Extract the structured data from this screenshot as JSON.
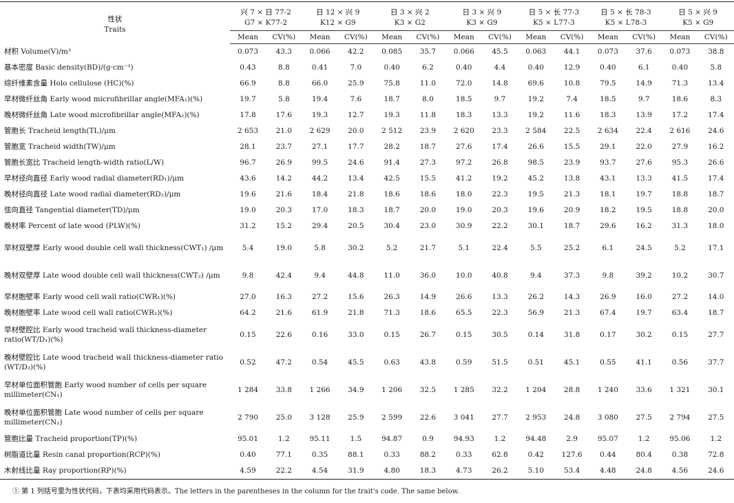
{
  "header": {
    "traits_cn": "性状",
    "traits_en": "Traits",
    "mean_label": "Mean",
    "cv_label": "CV(%)",
    "crosses": [
      {
        "cn": "兴 7 × 日 77-2",
        "code": "G7 × K77-2"
      },
      {
        "cn": "日 12 × 兴 9",
        "code": "K12 × G9"
      },
      {
        "cn": "日 3 × 兴 2",
        "code": "K3 × G2"
      },
      {
        "cn": "日 3 × 兴 9",
        "code": "K3 × G9"
      },
      {
        "cn": "日 5 × 长 77-3",
        "code": "K5 × L77-3"
      },
      {
        "cn": "日 5 × 长 78-3",
        "code": "K5 × L78-3"
      },
      {
        "cn": "日 5 × 兴 9",
        "code": "K5 × G9"
      }
    ]
  },
  "rows": [
    {
      "trait": "材积 Volume(V)/m³",
      "v": [
        "0.073",
        "43.3",
        "0.066",
        "42.2",
        "0.085",
        "35.7",
        "0.066",
        "45.5",
        "0.063",
        "44.1",
        "0.073",
        "37.6",
        "0.073",
        "38.8"
      ]
    },
    {
      "trait": "基本密度 Basic density(BD)/(g·cm⁻³)",
      "v": [
        "0.43",
        "8.8",
        "0.41",
        "7.0",
        "0.40",
        "6.2",
        "0.40",
        "4.4",
        "0.40",
        "12.9",
        "0.40",
        "6.1",
        "0.40",
        "5.8"
      ]
    },
    {
      "trait": "综纤维素含量 Holo cellulose (HC)(%)",
      "v": [
        "66.9",
        "8.8",
        "66.0",
        "25.9",
        "75.8",
        "11.0",
        "72.0",
        "14.8",
        "69.6",
        "10.8",
        "79.5",
        "14.9",
        "71.3",
        "13.4"
      ]
    },
    {
      "trait": "早材微纤丝角 Early wood microfibrillar angle(MFA₁)(%)",
      "v": [
        "19.7",
        "5.8",
        "19.4",
        "7.6",
        "18.7",
        "8.0",
        "18.5",
        "9.7",
        "19.2",
        "7.4",
        "18.5",
        "9.7",
        "18.6",
        "8.3"
      ]
    },
    {
      "trait": "晚材微纤丝角 Late wood microfibrillar angle(MFA₂)(%)",
      "v": [
        "17.8",
        "17.6",
        "19.3",
        "12.7",
        "19.3",
        "11.8",
        "18.3",
        "13.3",
        "19.2",
        "11.6",
        "18.3",
        "13.9",
        "17.2",
        "17.4"
      ]
    },
    {
      "trait": "管胞长 Tracheid length(TL)/μm",
      "v": [
        "2 653",
        "21.0",
        "2 629",
        "20.0",
        "2 512",
        "23.9",
        "2 620",
        "23.3",
        "2 584",
        "22.5",
        "2 634",
        "22.4",
        "2 616",
        "24.6"
      ]
    },
    {
      "trait": "管胞宽 Tracheid width(TW)/μm",
      "v": [
        "28.1",
        "23.7",
        "27.1",
        "17.7",
        "28.2",
        "18.7",
        "27.6",
        "17.4",
        "26.6",
        "15.5",
        "29.1",
        "22.0",
        "27.9",
        "16.2"
      ]
    },
    {
      "trait": "管胞长宽比 Tracheid length-width ratio(L/W)",
      "v": [
        "96.7",
        "26.9",
        "99.5",
        "24.6",
        "91.4",
        "27.3",
        "97.2",
        "26.8",
        "98.5",
        "23.9",
        "93.7",
        "27.6",
        "95.3",
        "26.6"
      ]
    },
    {
      "trait": "早材径向直径 Early wood radial diameter(RD₁)/μm",
      "v": [
        "43.6",
        "14.2",
        "44.2",
        "13.4",
        "42.5",
        "15.5",
        "41.2",
        "19.2",
        "45.2",
        "13.8",
        "43.1",
        "13.3",
        "41.5",
        "17.4"
      ]
    },
    {
      "trait": "晚材径向直径 Late wood radial diameter(RD₂)/μm",
      "v": [
        "19.6",
        "21.6",
        "18.4",
        "21.8",
        "18.6",
        "18.6",
        "18.0",
        "22.3",
        "19.5",
        "21.3",
        "18.1",
        "19.7",
        "18.8",
        "18.7"
      ]
    },
    {
      "trait": "弦向直径 Tangential diameter(TD)/μm",
      "v": [
        "19.0",
        "20.3",
        "17.0",
        "18.3",
        "18.7",
        "20.0",
        "19.0",
        "20.3",
        "19.6",
        "20.9",
        "18.2",
        "19.5",
        "18.8",
        "20.0"
      ]
    },
    {
      "trait": "晚材率 Percent of late wood (PLW)(%)",
      "v": [
        "31.2",
        "15.2",
        "29.4",
        "20.5",
        "30.4",
        "23.0",
        "30.9",
        "22.2",
        "30.1",
        "18.7",
        "29.6",
        "16.2",
        "31.3",
        "18.0"
      ]
    },
    {
      "trait": "早材双壁厚 Early wood double cell wall thickness(CWT₁) /μm",
      "v": [
        "5.4",
        "19.0",
        "5.8",
        "30.2",
        "5.2",
        "21.7",
        "5.1",
        "22.4",
        "5.5",
        "25.2",
        "6.1",
        "24.5",
        "5.2",
        "17.1"
      ]
    },
    {
      "trait": "晚材双壁厚 Late wood double cell wall thickness(CWT₂) /μm",
      "v": [
        "9.8",
        "42.4",
        "9.4",
        "44.8",
        "11.0",
        "36.0",
        "10.0",
        "40.8",
        "9.4",
        "37.3",
        "9.8",
        "39.2",
        "10.2",
        "30.7"
      ]
    },
    {
      "trait": "早材胞壁率 Early wood cell wall ratio(CWR₁)(%)",
      "v": [
        "27.0",
        "16.3",
        "27.2",
        "15.6",
        "26.3",
        "14.9",
        "26.6",
        "13.3",
        "26.2",
        "14.3",
        "26.9",
        "16.0",
        "27.2",
        "14.0"
      ]
    },
    {
      "trait": "晚材胞壁率 Late wood cell wall ratio(CWR₂)(%)",
      "v": [
        "64.2",
        "21.6",
        "61.9",
        "21.8",
        "71.3",
        "18.6",
        "65.5",
        "22.3",
        "56.9",
        "21.3",
        "67.4",
        "19.7",
        "63.4",
        "18.7"
      ]
    },
    {
      "trait": "早材壁腔比 Early wood tracheid wall thickness-diameter ratio(WT/D₁)(%)",
      "v": [
        "0.15",
        "22.6",
        "0.16",
        "33.0",
        "0.15",
        "26.7",
        "0.15",
        "30.5",
        "0.14",
        "31.8",
        "0.17",
        "30.2",
        "0.15",
        "27.7"
      ]
    },
    {
      "trait": "晚材壁腔比 Late wood tracheid wall thickness-diameter ratio (WT/D₂)(%)",
      "v": [
        "0.52",
        "47.2",
        "0.54",
        "45.5",
        "0.63",
        "43.8",
        "0.59",
        "51.5",
        "0.51",
        "45.1",
        "0.55",
        "41.1",
        "0.56",
        "37.7"
      ]
    },
    {
      "trait": "早材单位面积管胞 Early wood number of cells per square millimeter(CN₁)",
      "v": [
        "1 284",
        "33.8",
        "1 266",
        "34.9",
        "1 206",
        "32.5",
        "1 285",
        "32.2",
        "1 204",
        "28.8",
        "1 240",
        "33.6",
        "1 321",
        "30.1"
      ]
    },
    {
      "trait": "晚材单位面积管胞 Late wood number of cells per square millimeter(CN₂)",
      "v": [
        "2 790",
        "25.0",
        "3 128",
        "25.9",
        "2 599",
        "22.6",
        "3 041",
        "27.7",
        "2 953",
        "24.8",
        "3 080",
        "27.5",
        "2 794",
        "27.5"
      ]
    },
    {
      "trait": "管胞比量 Tracheid proportion(TP)(%)",
      "v": [
        "95.01",
        "1.2",
        "95.11",
        "1.5",
        "94.87",
        "0.9",
        "94.93",
        "1.2",
        "94.48",
        "2.9",
        "95.07",
        "1.2",
        "95.06",
        "1.2"
      ]
    },
    {
      "trait": "树脂道比量 Resin canal proportion(RCP)(%)",
      "v": [
        "0.40",
        "77.1",
        "0.35",
        "88.1",
        "0.33",
        "88.2",
        "0.33",
        "62.8",
        "0.42",
        "127.6",
        "0.44",
        "80.4",
        "0.38",
        "72.8"
      ]
    },
    {
      "trait": "木射线比量 Ray proportion(RP)(%)",
      "v": [
        "4.59",
        "22.2",
        "4.54",
        "31.9",
        "4.80",
        "18.3",
        "4.73",
        "26.2",
        "5.10",
        "53.4",
        "4.48",
        "24.8",
        "4.56",
        "24.6"
      ]
    }
  ],
  "footnote": "① 第 1 列括号里为性状代码，下表均采用代码表示。The letters in the parentheses in the column for the trait's code. The same below."
}
